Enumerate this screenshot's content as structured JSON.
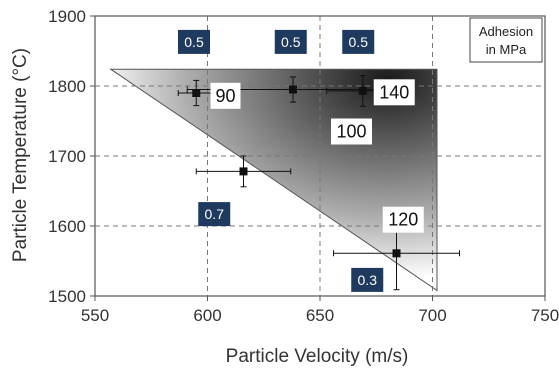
{
  "chart_data": {
    "type": "scatter",
    "xlabel": "Particle Velocity (m/s)",
    "ylabel": "Particle Temperature (°C)",
    "xlim": [
      550,
      750
    ],
    "ylim": [
      1500,
      1900
    ],
    "xticks": [
      550,
      600,
      650,
      700,
      750
    ],
    "yticks": [
      1500,
      1600,
      1700,
      1800,
      1900
    ],
    "grid": true,
    "legend": {
      "text_line1": "Adhesion",
      "text_line2": "in MPa",
      "placement": "top-right"
    },
    "gradient_triangle": {
      "vertices": [
        [
          557,
          1824
        ],
        [
          702,
          1824
        ],
        [
          702,
          1508
        ]
      ],
      "light_color": "#ffffff",
      "dark_color": "#1a1a1a"
    },
    "points": [
      {
        "x": 595,
        "y": 1790,
        "x_err": 8,
        "y_err": 18,
        "label": "0.5",
        "label_anchor": [
          594,
          1863
        ]
      },
      {
        "x": 638,
        "y": 1795,
        "x_err": 47,
        "y_err": 18,
        "label": "0.5",
        "label_anchor": [
          637,
          1863
        ]
      },
      {
        "x": 669,
        "y": 1793,
        "x_err": 16,
        "y_err": 22,
        "label": "0.5",
        "label_anchor": [
          667,
          1863
        ]
      },
      {
        "x": 616,
        "y": 1678,
        "x_err": 21,
        "y_err": 22,
        "label": "0.7",
        "label_anchor": [
          603,
          1617
        ]
      },
      {
        "x": 684,
        "y": 1561,
        "x_err": 28,
        "y_err": 52,
        "label": "0.3",
        "label_anchor": [
          671,
          1523
        ]
      }
    ],
    "region_labels": [
      {
        "text": "90",
        "x": 608,
        "y": 1786
      },
      {
        "text": "140",
        "x": 683,
        "y": 1791
      },
      {
        "text": "100",
        "x": 664,
        "y": 1735
      },
      {
        "text": "120",
        "x": 687,
        "y": 1609
      }
    ],
    "colors": {
      "badge": "#1f3a5f",
      "point": "#111111",
      "grid": "#777777",
      "axis": "#555555"
    }
  }
}
